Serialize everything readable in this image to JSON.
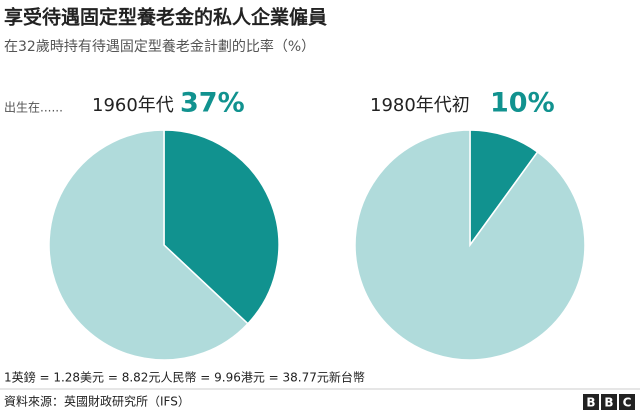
{
  "title": "享受待遇固定型養老金的私人企業僱員",
  "subtitle": "在32歲時持有待遇固定型養老金計劃的比率（%）",
  "born_label": "出生在......",
  "note": "1英鎊 = 1.28美元 = 8.82元人民幣 = 9.96港元 = 38.77元新台幣",
  "source": "資料來源：英國財政研究所（IFS）",
  "logo": [
    "B",
    "B",
    "C"
  ],
  "chart_data": [
    {
      "type": "pie",
      "label": "1960年代",
      "values": [
        37,
        63
      ],
      "value_labels": [
        "37%",
        null
      ],
      "colors": [
        "#11928f",
        "#b0dbdb"
      ]
    },
    {
      "type": "pie",
      "label": "1980年代初",
      "values": [
        10,
        90
      ],
      "value_labels": [
        "10%",
        null
      ],
      "colors": [
        "#11928f",
        "#b0dbdb"
      ]
    }
  ]
}
